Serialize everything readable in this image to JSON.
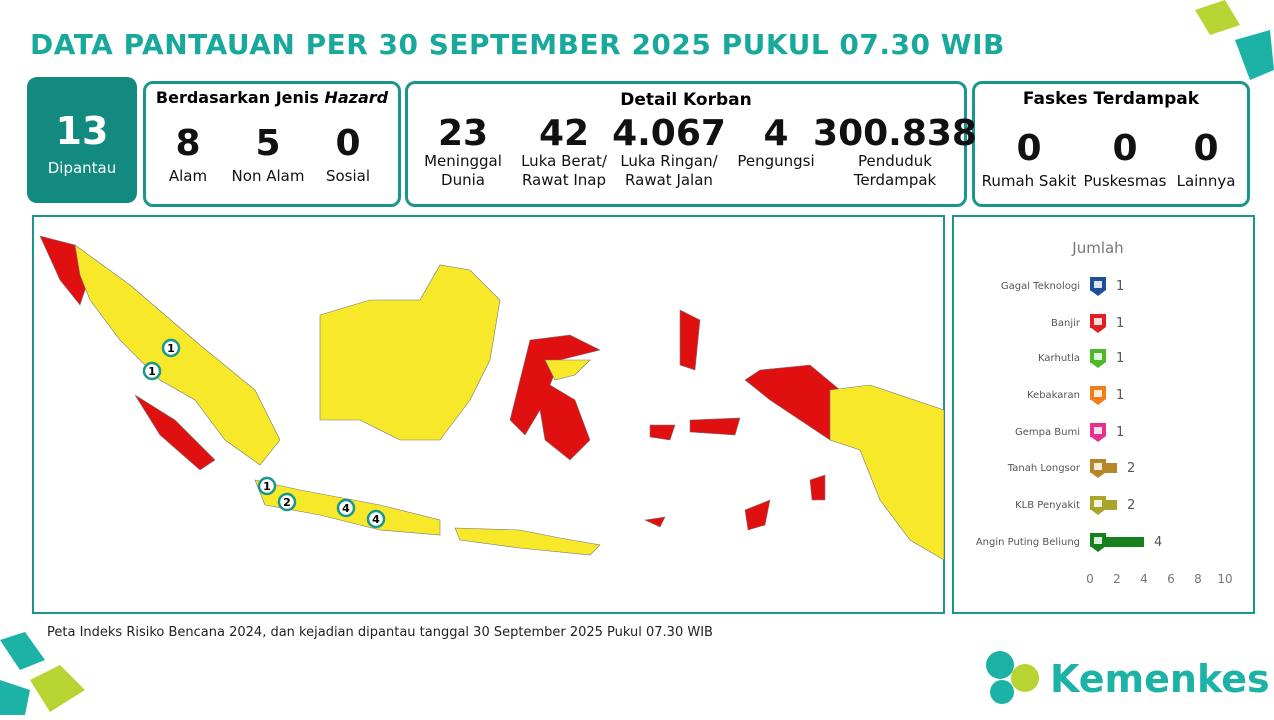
{
  "header": {
    "title": "DATA PANTAUAN PER 30 SEPTEMBER 2025 PUKUL 07.30 WIB"
  },
  "summary": {
    "value": 13,
    "label": "Dipantau"
  },
  "hazard": {
    "title": "Berdasarkan Jenis",
    "title_emphasis": "Hazard",
    "items": [
      {
        "value": 8,
        "label": "Alam"
      },
      {
        "value": 5,
        "label": "Non Alam"
      },
      {
        "value": 0,
        "label": "Sosial"
      }
    ]
  },
  "casualties": {
    "title": "Detail Korban",
    "items": [
      {
        "value": 23,
        "label": "Meninggal Dunia"
      },
      {
        "value": 42,
        "label": "Luka Berat/ Rawat Inap"
      },
      {
        "value": "4.067",
        "label": "Luka Ringan/ Rawat Jalan"
      },
      {
        "value": 4,
        "label": "Pengungsi"
      },
      {
        "value": "300.838",
        "label": "Penduduk Terdampak"
      }
    ]
  },
  "facilities": {
    "title": "Faskes Terdampak",
    "items": [
      {
        "value": 0,
        "label": "Rumah Sakit"
      },
      {
        "value": 0,
        "label": "Puskesmas"
      },
      {
        "value": 0,
        "label": "Lainnya"
      }
    ]
  },
  "map": {
    "markers": [
      1,
      1,
      1,
      2,
      4,
      4
    ],
    "caption": "Peta Indeks Risiko Bencana 2024, dan kejadian dipantau tanggal 30 September 2025 Pukul 07.30 WIB"
  },
  "chart_data": {
    "type": "hbar",
    "title": "Jumlah",
    "categories": [
      "Gagal Teknologi",
      "Banjir",
      "Karhutla",
      "Kebakaran",
      "Gempa Bumi",
      "Tanah Longsor",
      "KLB Penyakit",
      "Angin Puting Beliung"
    ],
    "values": [
      1,
      1,
      1,
      1,
      1,
      2,
      2,
      4
    ],
    "colors": [
      "#1f4e9a",
      "#e02020",
      "#4cb82a",
      "#f07f1a",
      "#e8318f",
      "#b5862a",
      "#a8a42c",
      "#17801e"
    ],
    "xlim": [
      0,
      10
    ],
    "xticks": [
      0,
      2,
      4,
      6,
      8,
      10
    ]
  },
  "logo": {
    "text": "Kemenkes"
  }
}
